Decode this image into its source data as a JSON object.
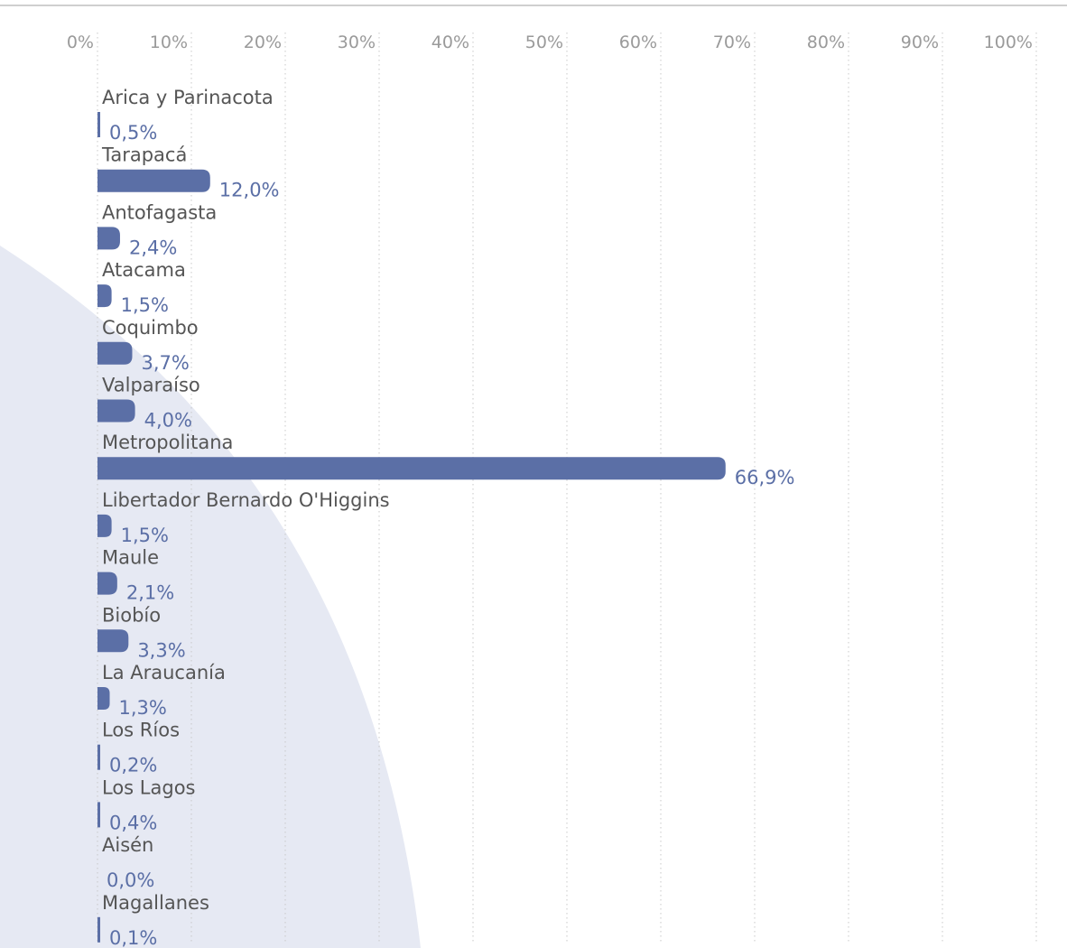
{
  "chart_data": {
    "type": "bar",
    "orientation": "horizontal",
    "xlim": [
      0,
      100
    ],
    "xticks": [
      "0%",
      "10%",
      "20%",
      "30%",
      "40%",
      "50%",
      "60%",
      "70%",
      "80%",
      "90%",
      "100%"
    ],
    "categories": [
      "Arica y Parinacota",
      "Tarapacá",
      "Antofagasta",
      "Atacama",
      "Coquimbo",
      "Valparaíso",
      "Metropolitana",
      "Libertador Bernardo O'Higgins",
      "Maule",
      "Biobío",
      "La Araucanía",
      "Los Ríos",
      "Los Lagos",
      "Aisén",
      "Magallanes"
    ],
    "values": [
      0.5,
      12.0,
      2.4,
      1.5,
      3.7,
      4.0,
      66.9,
      1.5,
      2.1,
      3.3,
      1.3,
      0.2,
      0.4,
      0.0,
      0.1
    ],
    "value_labels": [
      "0,5%",
      "12,0%",
      "2,4%",
      "1,5%",
      "3,7%",
      "4,0%",
      "66,9%",
      "1,5%",
      "2,1%",
      "3,3%",
      "1,3%",
      "0,2%",
      "0,4%",
      "0,0%",
      "0,1%"
    ],
    "grid": "vertical dotted",
    "colors": {
      "bar": "#5b6fa6",
      "value_label": "#5b6fa6",
      "category_label": "#555555",
      "tick_label": "#9a9a9a",
      "grid": "#c8c8c8",
      "background_shape": "#e6e9f3",
      "top_rule": "#cfcfcf"
    }
  }
}
